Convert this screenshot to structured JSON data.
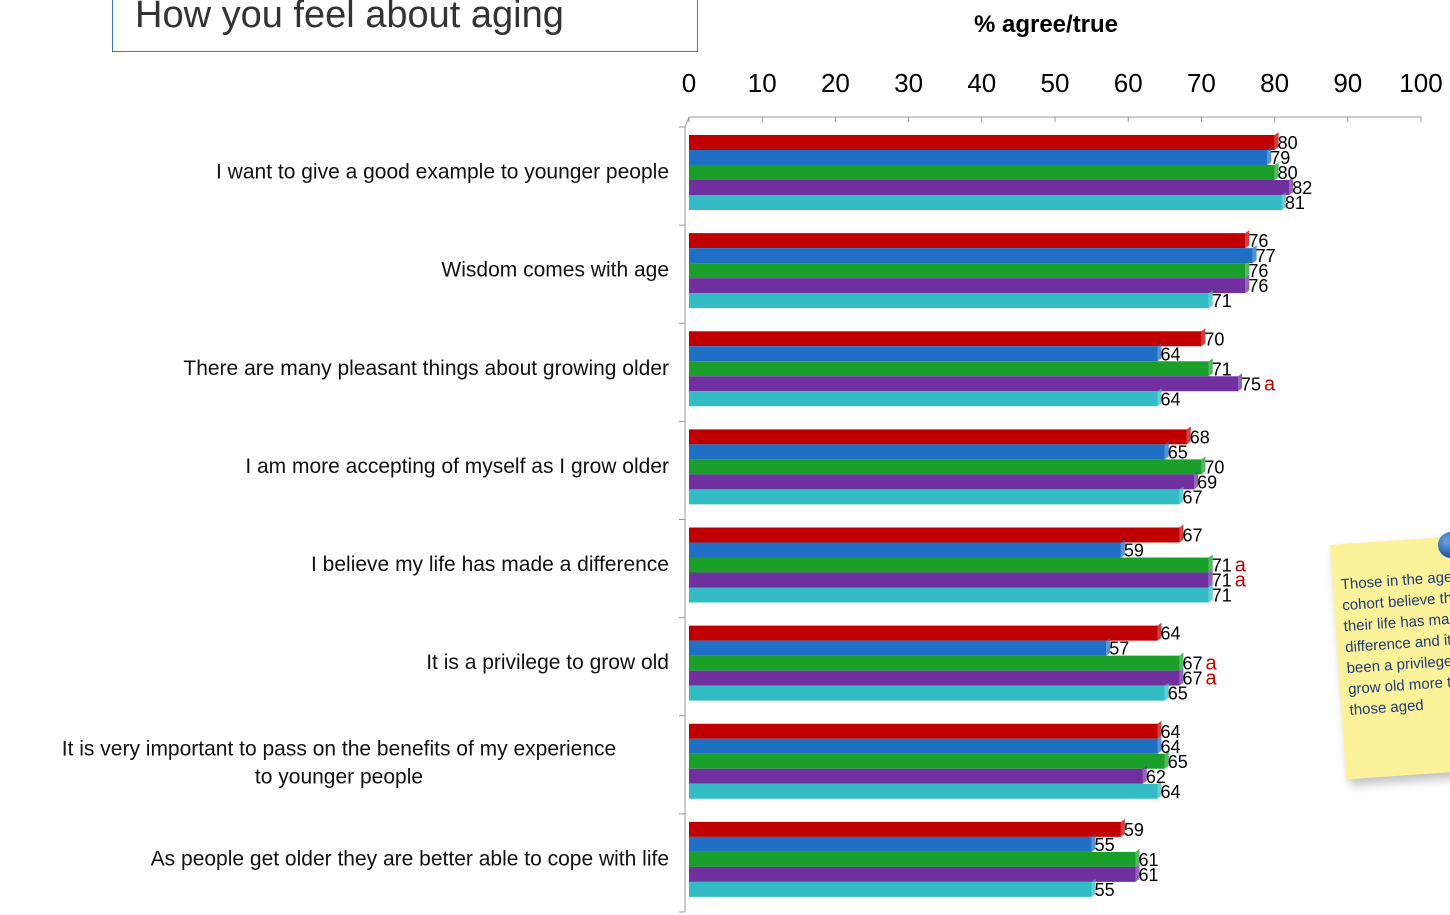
{
  "title": "How you feel about aging",
  "sticky_note": {
    "text": "Those in the age cohort believe that their life has made a difference and it has been a privilege to grow old more than those aged"
  },
  "chart_data": {
    "type": "bar",
    "orientation": "horizontal",
    "title": "% agree/true",
    "xlim": [
      0,
      100
    ],
    "ticks": [
      0,
      10,
      20,
      30,
      40,
      50,
      60,
      70,
      80,
      90,
      100
    ],
    "grid": false,
    "legend": "none",
    "categories": [
      "I want to give a good example to younger people",
      "Wisdom comes with age",
      "There are many pleasant things about growing older",
      "I am more accepting of myself as I grow older",
      "I believe my life has made a difference",
      "It is a privilege to grow old",
      "It is very important to pass on the benefits of my experience to younger people",
      "As people get older they are better able to cope with life"
    ],
    "series": [
      {
        "color": "#c00000",
        "values": [
          80,
          76,
          70,
          68,
          67,
          64,
          64,
          59
        ],
        "flags": [
          "",
          "",
          "",
          "",
          "",
          "",
          "",
          ""
        ]
      },
      {
        "color": "#1f6fc5",
        "values": [
          79,
          77,
          64,
          65,
          59,
          57,
          64,
          55
        ],
        "flags": [
          "",
          "",
          "",
          "",
          "",
          "",
          "",
          ""
        ]
      },
      {
        "color": "#1aa02a",
        "values": [
          80,
          76,
          71,
          70,
          71,
          67,
          65,
          61
        ],
        "flags": [
          "",
          "",
          "",
          "",
          "a",
          "a",
          "",
          ""
        ]
      },
      {
        "color": "#7030a0",
        "values": [
          82,
          76,
          75,
          69,
          71,
          67,
          62,
          61
        ],
        "flags": [
          "",
          "",
          "a",
          "",
          "a",
          "a",
          "",
          ""
        ]
      },
      {
        "color": "#33bcc4",
        "values": [
          81,
          71,
          64,
          67,
          71,
          65,
          64,
          55
        ],
        "flags": [
          "",
          "",
          "",
          "",
          "",
          "",
          "",
          ""
        ]
      }
    ],
    "flag_color": "#c00000"
  }
}
